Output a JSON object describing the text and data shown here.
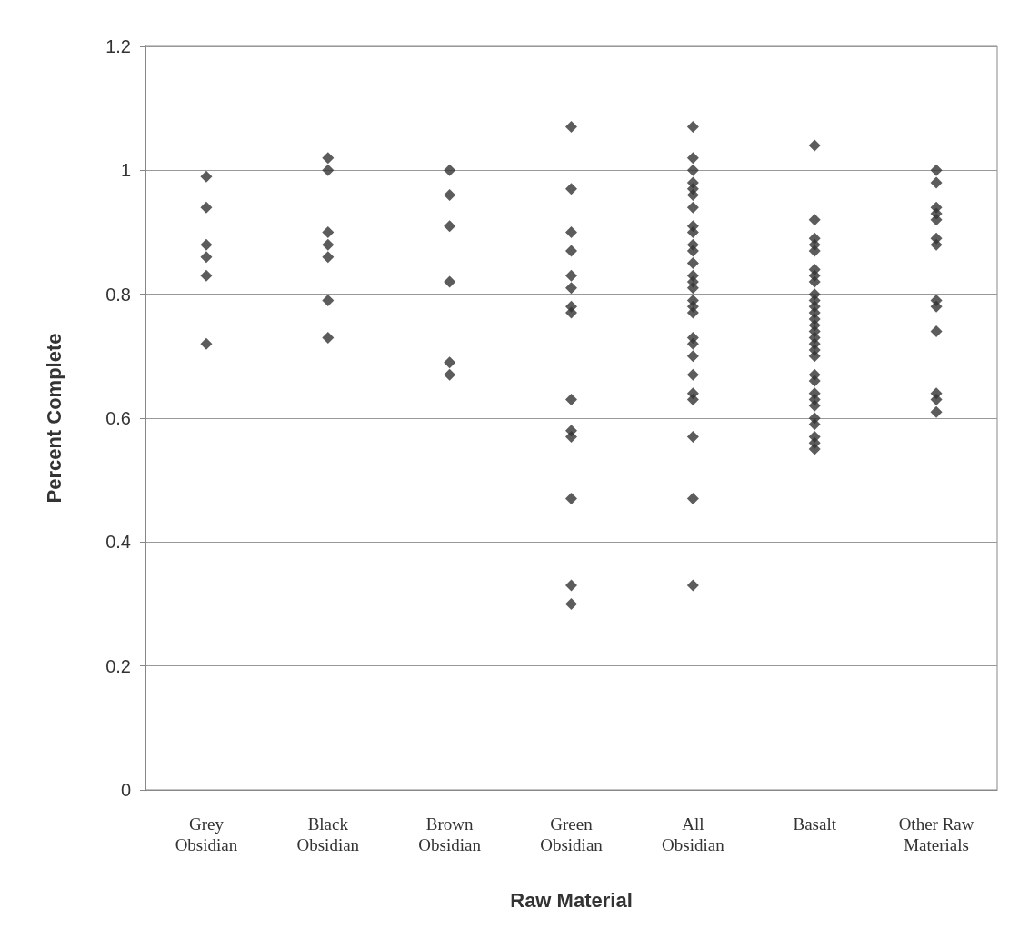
{
  "chart_data": {
    "type": "scatter",
    "xlabel": "Raw Material",
    "ylabel": "Percent Complete",
    "categories": [
      "Grey\nObsidian",
      "Black\nObsidian",
      "Brown\nObsidian",
      "Green\nObsidian",
      "All\nObsidian",
      "Basalt",
      "Other Raw\nMaterials"
    ],
    "series": [
      {
        "color": "#333333",
        "x": [
          "Grey\nObsidian",
          "Grey\nObsidian",
          "Grey\nObsidian",
          "Grey\nObsidian",
          "Grey\nObsidian",
          "Grey\nObsidian",
          "Black\nObsidian",
          "Black\nObsidian",
          "Black\nObsidian",
          "Black\nObsidian",
          "Black\nObsidian",
          "Black\nObsidian",
          "Black\nObsidian",
          "Brown\nObsidian",
          "Brown\nObsidian",
          "Brown\nObsidian",
          "Brown\nObsidian",
          "Brown\nObsidian",
          "Brown\nObsidian",
          "Green\nObsidian",
          "Green\nObsidian",
          "Green\nObsidian",
          "Green\nObsidian",
          "Green\nObsidian",
          "Green\nObsidian",
          "Green\nObsidian",
          "Green\nObsidian",
          "Green\nObsidian",
          "Green\nObsidian",
          "Green\nObsidian",
          "Green\nObsidian",
          "Green\nObsidian",
          "Green\nObsidian",
          "All\nObsidian",
          "All\nObsidian",
          "All\nObsidian",
          "All\nObsidian",
          "All\nObsidian",
          "All\nObsidian",
          "All\nObsidian",
          "All\nObsidian",
          "All\nObsidian",
          "All\nObsidian",
          "All\nObsidian",
          "All\nObsidian",
          "All\nObsidian",
          "All\nObsidian",
          "All\nObsidian",
          "All\nObsidian",
          "All\nObsidian",
          "All\nObsidian",
          "All\nObsidian",
          "All\nObsidian",
          "All\nObsidian",
          "All\nObsidian",
          "All\nObsidian",
          "All\nObsidian",
          "All\nObsidian",
          "All\nObsidian",
          "All\nObsidian",
          "Basalt",
          "Basalt",
          "Basalt",
          "Basalt",
          "Basalt",
          "Basalt",
          "Basalt",
          "Basalt",
          "Basalt",
          "Basalt",
          "Basalt",
          "Basalt",
          "Basalt",
          "Basalt",
          "Basalt",
          "Basalt",
          "Basalt",
          "Basalt",
          "Basalt",
          "Basalt",
          "Basalt",
          "Basalt",
          "Basalt",
          "Basalt",
          "Basalt",
          "Basalt",
          "Basalt",
          "Basalt",
          "Basalt",
          "Other Raw\nMaterials",
          "Other Raw\nMaterials",
          "Other Raw\nMaterials",
          "Other Raw\nMaterials",
          "Other Raw\nMaterials",
          "Other Raw\nMaterials",
          "Other Raw\nMaterials",
          "Other Raw\nMaterials",
          "Other Raw\nMaterials",
          "Other Raw\nMaterials",
          "Other Raw\nMaterials",
          "Other Raw\nMaterials",
          "Other Raw\nMaterials"
        ],
        "values": [
          0.99,
          0.94,
          0.88,
          0.86,
          0.83,
          0.72,
          1.02,
          1.0,
          0.9,
          0.88,
          0.86,
          0.79,
          0.73,
          1.0,
          0.96,
          0.91,
          0.82,
          0.69,
          0.67,
          1.07,
          0.97,
          0.9,
          0.87,
          0.83,
          0.81,
          0.78,
          0.77,
          0.63,
          0.58,
          0.57,
          0.47,
          0.33,
          0.3,
          1.07,
          1.02,
          1.0,
          0.98,
          0.97,
          0.96,
          0.94,
          0.91,
          0.9,
          0.88,
          0.87,
          0.85,
          0.83,
          0.82,
          0.81,
          0.79,
          0.78,
          0.77,
          0.73,
          0.72,
          0.7,
          0.67,
          0.64,
          0.63,
          0.57,
          0.47,
          0.33,
          1.04,
          0.92,
          0.89,
          0.88,
          0.87,
          0.84,
          0.83,
          0.82,
          0.8,
          0.79,
          0.78,
          0.77,
          0.76,
          0.75,
          0.74,
          0.73,
          0.72,
          0.71,
          0.7,
          0.67,
          0.66,
          0.64,
          0.63,
          0.62,
          0.6,
          0.59,
          0.57,
          0.56,
          0.55,
          1.0,
          0.98,
          0.94,
          0.93,
          0.92,
          0.89,
          0.88,
          0.79,
          0.78,
          0.74,
          0.64,
          0.63,
          0.61
        ]
      }
    ],
    "ylim": [
      0,
      1.2
    ],
    "yticks": [
      0,
      0.2,
      0.4,
      0.6,
      0.8,
      1,
      1.2
    ],
    "grid": "y",
    "marker": "diamond"
  }
}
